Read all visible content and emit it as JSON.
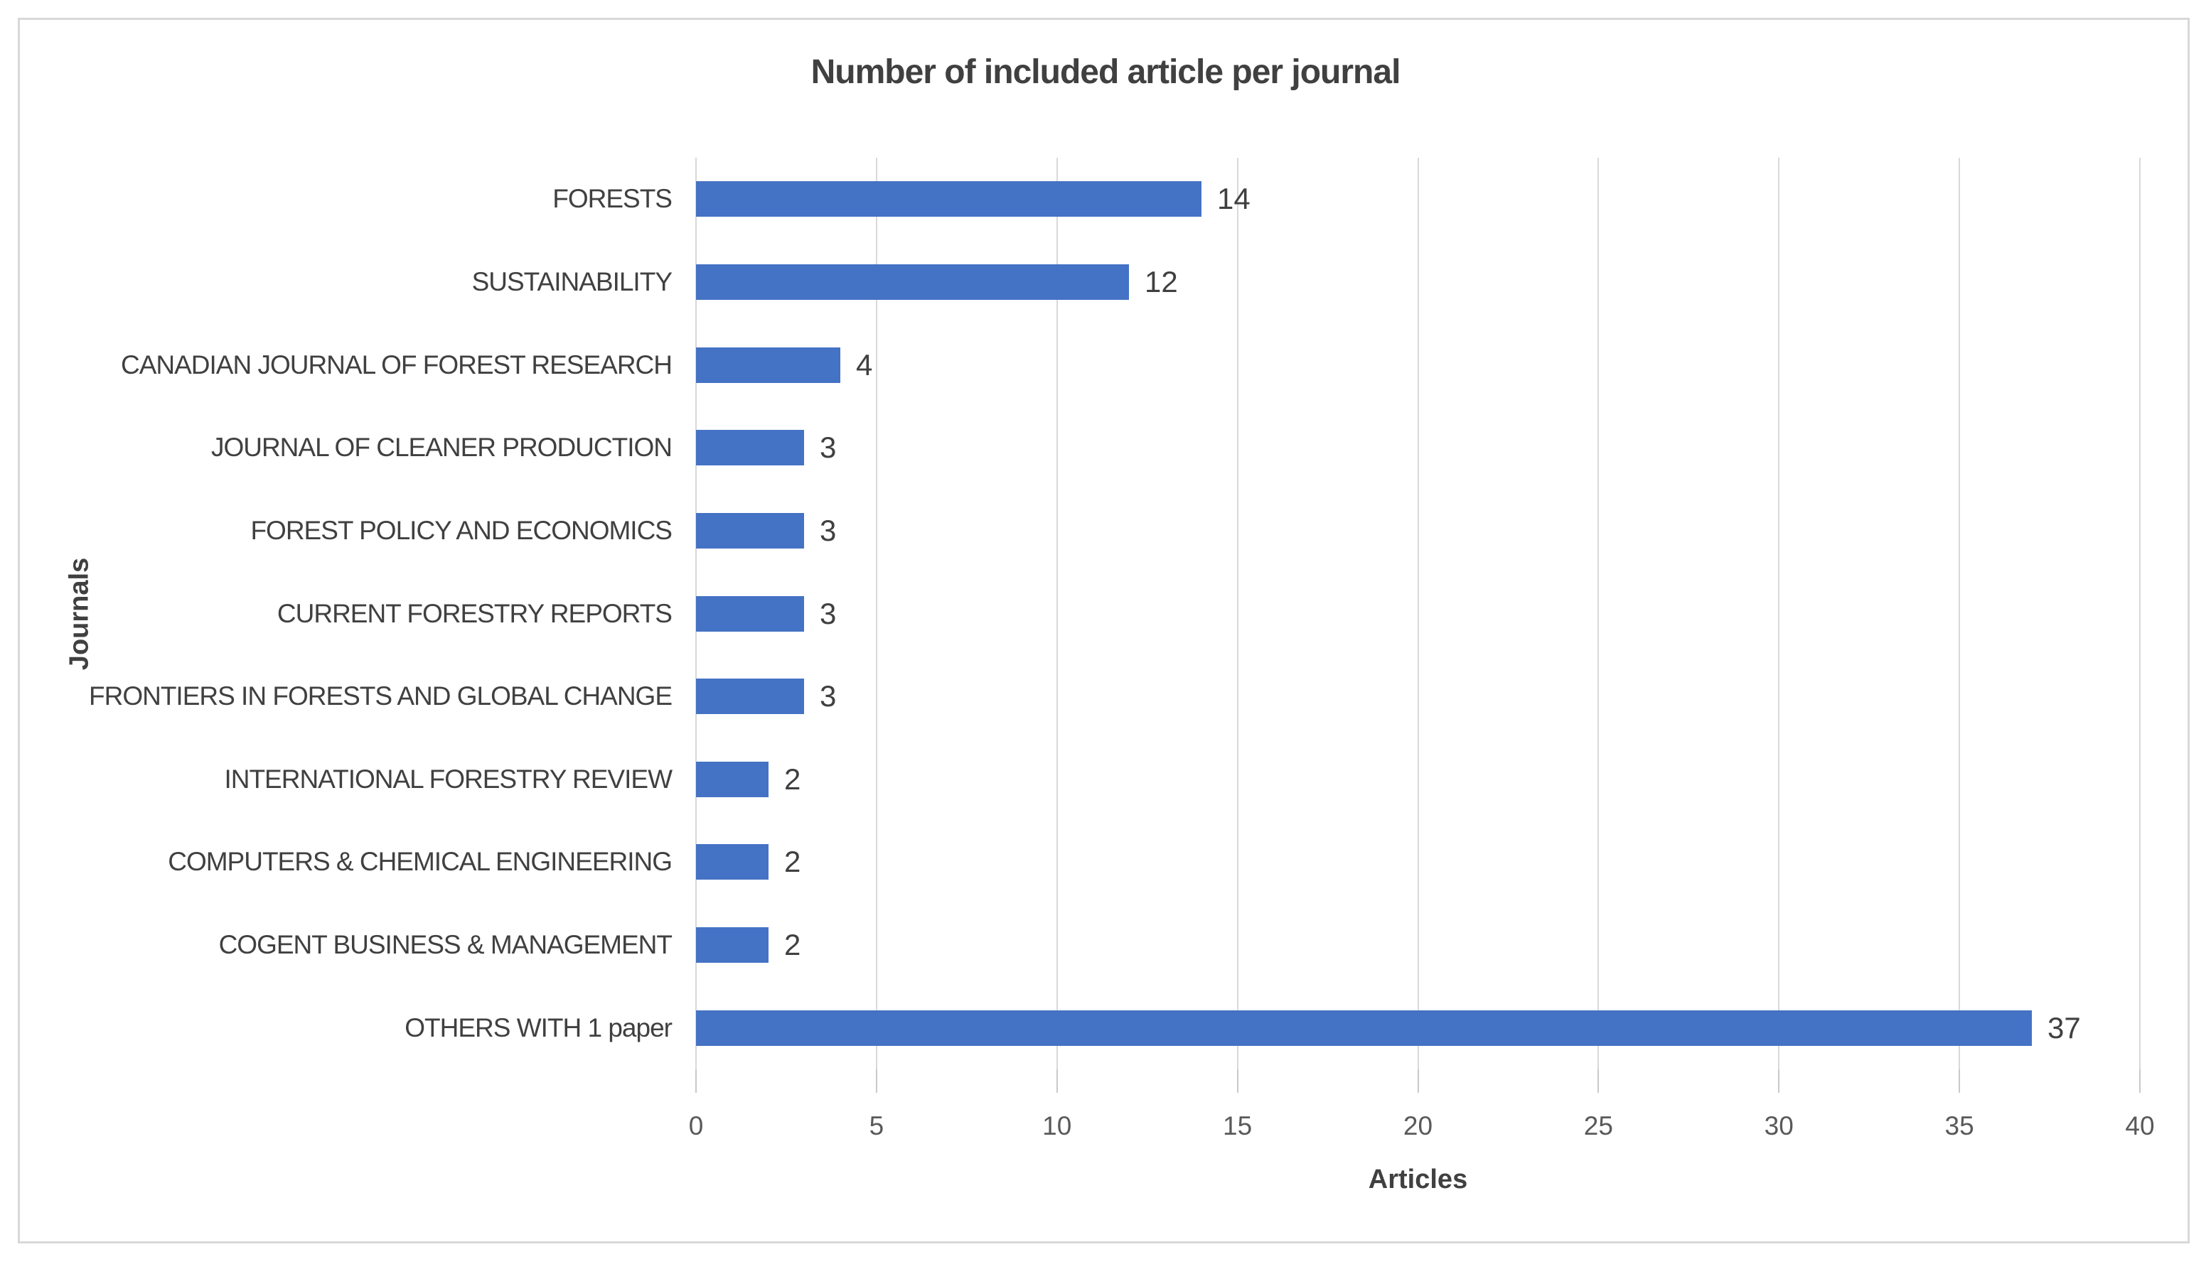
{
  "chart_data": {
    "type": "bar",
    "orientation": "horizontal",
    "title": "Number of included article per journal",
    "xlabel": "Articles",
    "ylabel": "Journals",
    "categories": [
      "FORESTS",
      "SUSTAINABILITY",
      "CANADIAN JOURNAL OF FOREST RESEARCH",
      "JOURNAL OF CLEANER PRODUCTION",
      "FOREST POLICY AND ECONOMICS",
      "CURRENT FORESTRY REPORTS",
      "FRONTIERS IN FORESTS AND GLOBAL CHANGE",
      "INTERNATIONAL FORESTRY REVIEW",
      "COMPUTERS & CHEMICAL ENGINEERING",
      "COGENT BUSINESS & MANAGEMENT",
      "OTHERS WITH 1 paper"
    ],
    "values": [
      14,
      12,
      4,
      3,
      3,
      3,
      3,
      2,
      2,
      2,
      37
    ],
    "data_labels": [
      14,
      12,
      4,
      3,
      3,
      3,
      3,
      2,
      2,
      2,
      37
    ],
    "xlim": [
      0,
      40
    ],
    "xticks": [
      0,
      5,
      10,
      15,
      20,
      25,
      30,
      35,
      40
    ],
    "grid": "vertical gridlines every 5 units, tick marks outside axis",
    "legend": "none"
  },
  "colors": {
    "bar": "#4472c4",
    "title_text": "#404040",
    "label_text": "#404040",
    "tick_text": "#595959",
    "gridline": "#d9d9d9",
    "frame_border": "#d8d8d8",
    "background": "#ffffff"
  }
}
